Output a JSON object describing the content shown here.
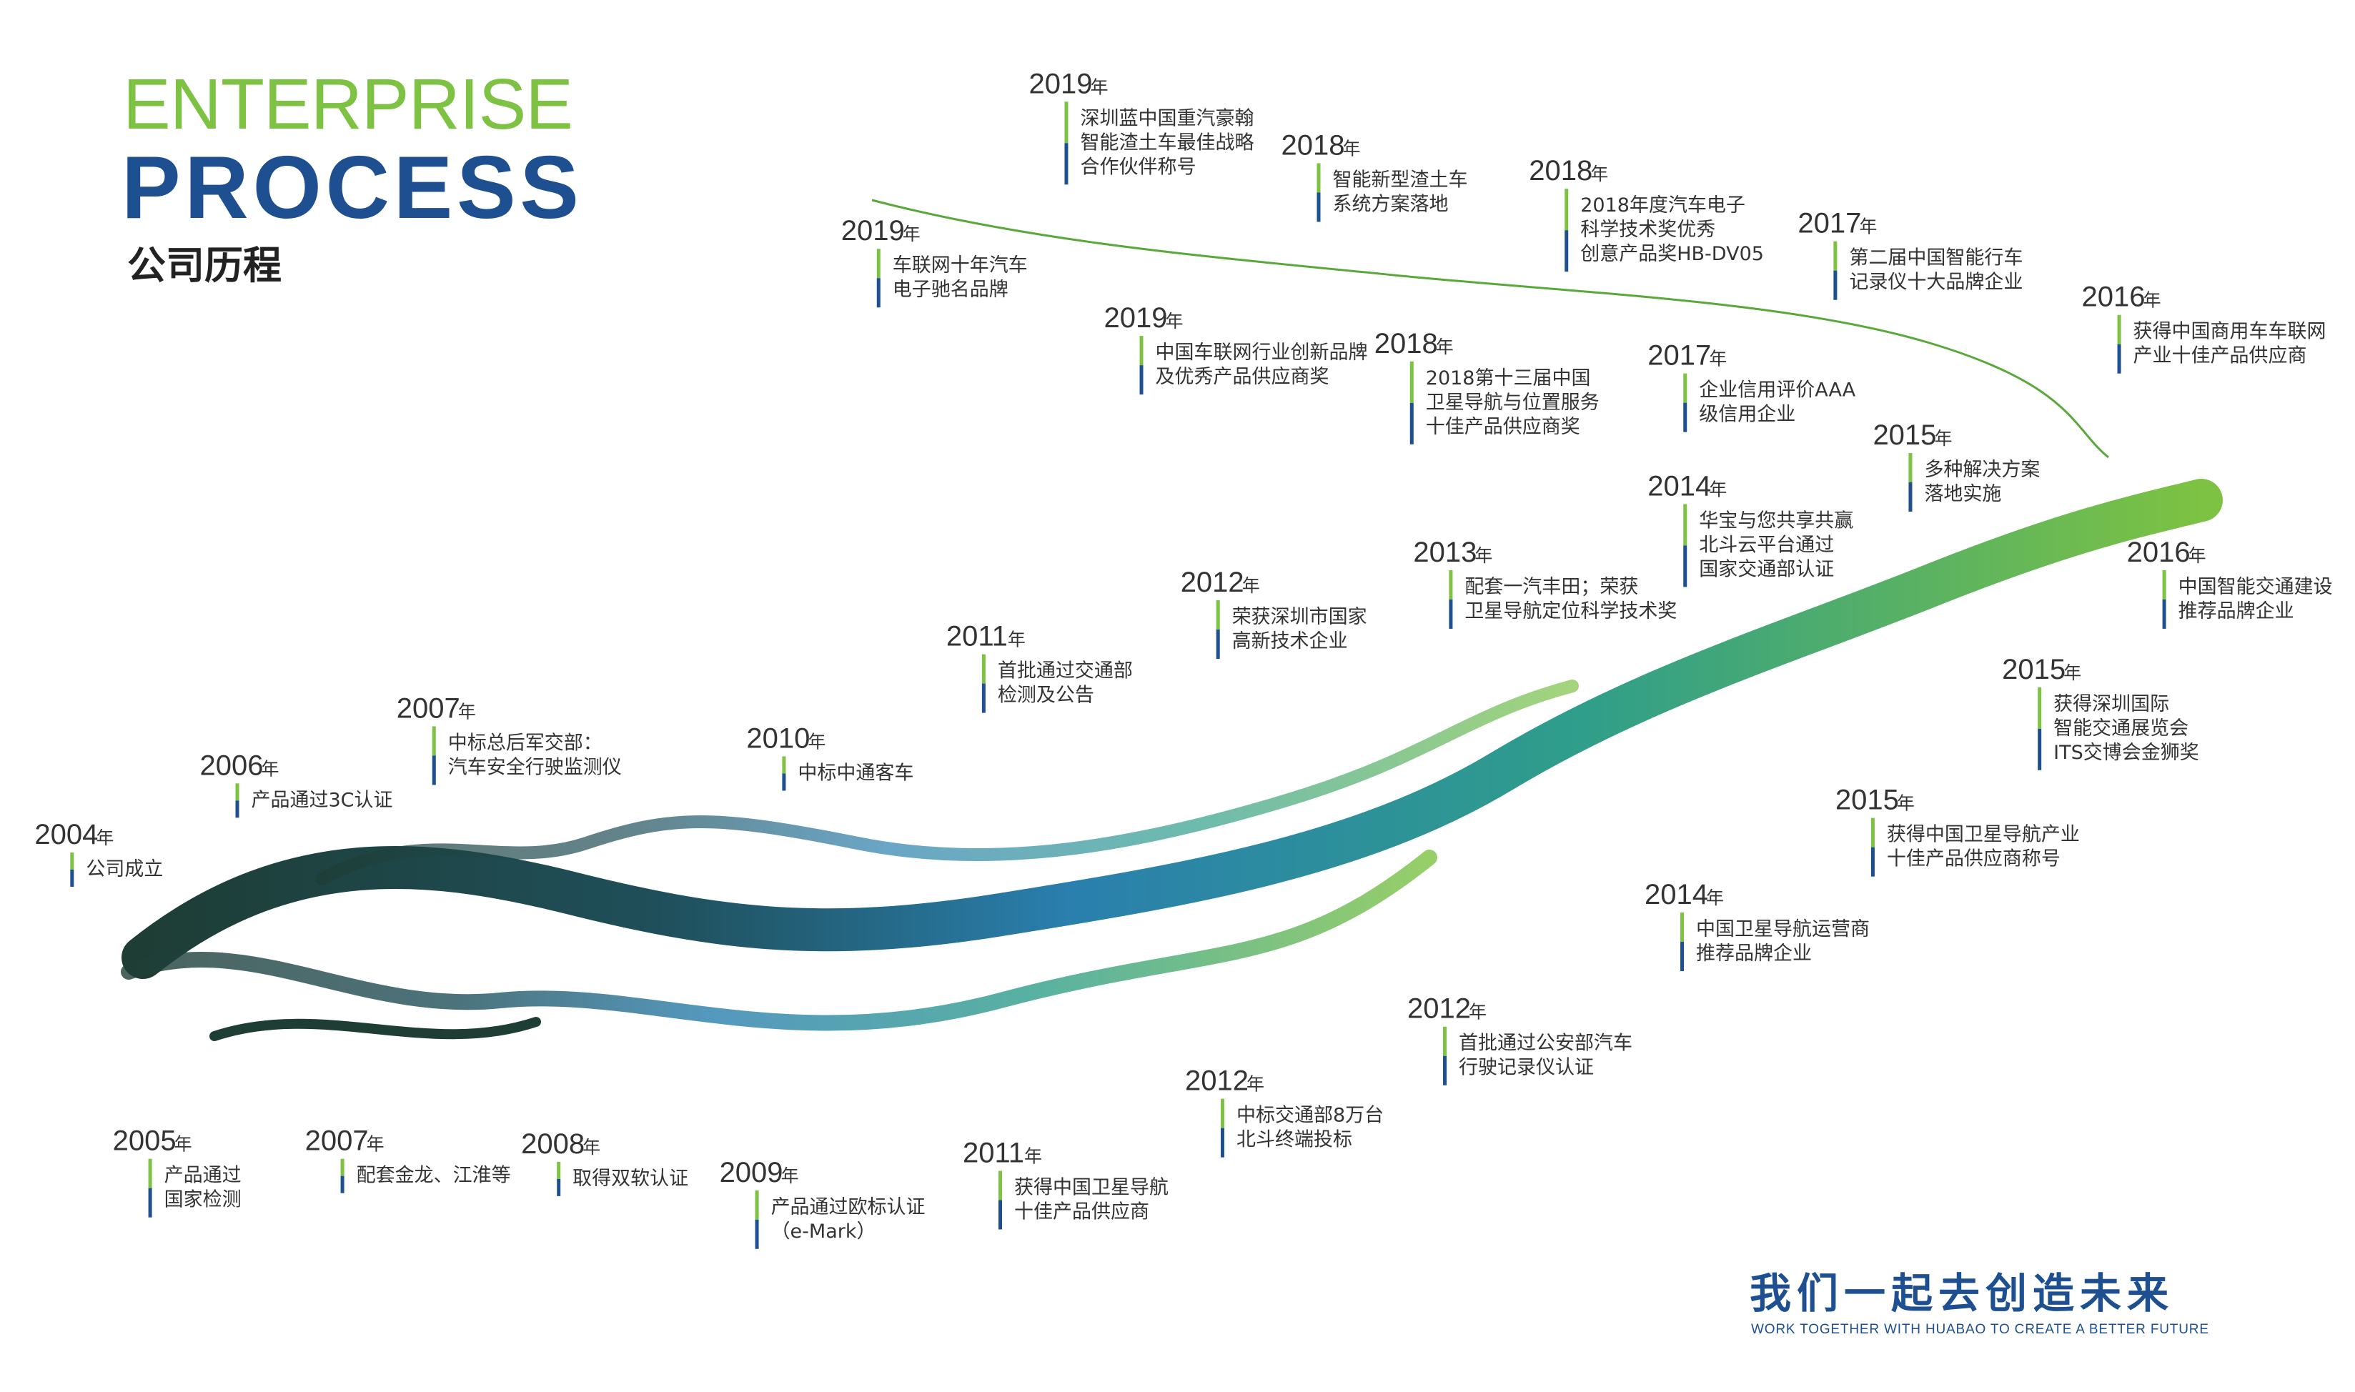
{
  "header": {
    "title": "ENTERPRISE",
    "title_strong": "PROCESS",
    "subtitle": "公司历程"
  },
  "year_unit": "年",
  "events": [
    {
      "year": "2019",
      "lines": [
        "深圳蓝中国重汽豪翰",
        "智能渣土车最佳战略",
        "合作伙伴称号"
      ]
    },
    {
      "year": "2018",
      "lines": [
        "智能新型渣土车",
        "系统方案落地"
      ]
    },
    {
      "year": "2018",
      "lines": [
        "2018年度汽车电子",
        "科学技术奖优秀",
        "创意产品奖HB-DV05"
      ]
    },
    {
      "year": "2017",
      "lines": [
        "第二届中国智能行车",
        "记录仪十大品牌企业"
      ]
    },
    {
      "year": "2016",
      "lines": [
        "获得中国商用车车联网",
        "产业十佳产品供应商"
      ]
    },
    {
      "year": "2019",
      "lines": [
        "车联网十年汽车",
        "电子驰名品牌"
      ]
    },
    {
      "year": "2019",
      "lines": [
        "中国车联网行业创新品牌",
        "及优秀产品供应商奖"
      ]
    },
    {
      "year": "2018",
      "lines": [
        "2018第十三届中国",
        "卫星导航与位置服务",
        "十佳产品供应商奖"
      ]
    },
    {
      "year": "2017",
      "lines": [
        "企业信用评价AAA",
        "级信用企业"
      ]
    },
    {
      "year": "2015",
      "lines": [
        "多种解决方案",
        "落地实施"
      ]
    },
    {
      "year": "2014",
      "lines": [
        "华宝与您共享共赢",
        "北斗云平台通过",
        "国家交通部认证"
      ]
    },
    {
      "year": "2016",
      "lines": [
        "中国智能交通建设",
        "推荐品牌企业"
      ]
    },
    {
      "year": "2013",
      "lines": [
        "配套一汽丰田；荣获",
        "卫星导航定位科学技术奖"
      ]
    },
    {
      "year": "2012",
      "lines": [
        "荣获深圳市国家",
        "高新技术企业"
      ]
    },
    {
      "year": "2011",
      "lines": [
        "首批通过交通部",
        "检测及公告"
      ]
    },
    {
      "year": "2015",
      "lines": [
        "获得深圳国际",
        "智能交通展览会",
        "ITS交博会金狮奖"
      ]
    },
    {
      "year": "2007",
      "lines": [
        "中标总后军交部：",
        "汽车安全行驶监测仪"
      ]
    },
    {
      "year": "2010",
      "lines": [
        "中标中通客车"
      ]
    },
    {
      "year": "2006",
      "lines": [
        "产品通过3C认证"
      ]
    },
    {
      "year": "2004",
      "lines": [
        "公司成立"
      ]
    },
    {
      "year": "2015",
      "lines": [
        "获得中国卫星导航产业",
        "十佳产品供应商称号"
      ]
    },
    {
      "year": "2014",
      "lines": [
        "中国卫星导航运营商",
        "推荐品牌企业"
      ]
    },
    {
      "year": "2012",
      "lines": [
        "首批通过公安部汽车",
        "行驶记录仪认证"
      ]
    },
    {
      "year": "2012",
      "lines": [
        "中标交通部8万台",
        "北斗终端投标"
      ]
    },
    {
      "year": "2005",
      "lines": [
        "产品通过",
        "国家检测"
      ]
    },
    {
      "year": "2007",
      "lines": [
        "配套金龙、江淮等"
      ]
    },
    {
      "year": "2008",
      "lines": [
        "取得双软认证"
      ]
    },
    {
      "year": "2009",
      "lines": [
        "产品通过欧标认证",
        "（e-Mark）"
      ]
    },
    {
      "year": "2011",
      "lines": [
        "获得中国卫星导航",
        "十佳产品供应商"
      ]
    }
  ],
  "footer": {
    "slogan": "我们一起去创造未来",
    "slogan_en": "WORK TOGETHER WITH HUABAO TO CREATE A BETTER FUTURE"
  }
}
